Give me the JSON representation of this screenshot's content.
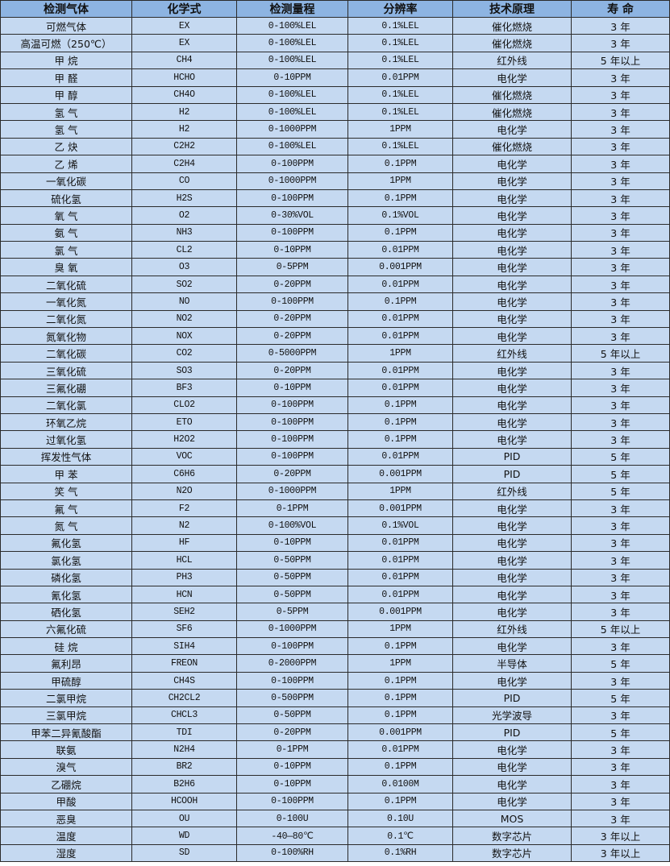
{
  "colors": {
    "header_bg": "#8DB4E2",
    "row_bg": "#C5D9F1",
    "border": "#2b2b2b"
  },
  "headers": [
    "检测气体",
    "化学式",
    "检测量程",
    "分辨率",
    "技术原理",
    "寿 命"
  ],
  "rows": [
    [
      "可燃气体",
      "EX",
      "0-100%LEL",
      "0.1%LEL",
      "催化燃烧",
      "3 年"
    ],
    [
      "高温可燃（250℃）",
      "EX",
      "0-100%LEL",
      "0.1%LEL",
      "催化燃烧",
      "3 年"
    ],
    [
      "甲 烷",
      "CH4",
      "0-100%LEL",
      "0.1%LEL",
      "红外线",
      "5 年以上"
    ],
    [
      "甲 醛",
      "HCHO",
      "0-10PPM",
      "0.01PPM",
      "电化学",
      "3 年"
    ],
    [
      "甲 醇",
      "CH4O",
      "0-100%LEL",
      "0.1%LEL",
      "催化燃烧",
      "3 年"
    ],
    [
      "氢 气",
      "H2",
      "0-100%LEL",
      "0.1%LEL",
      "催化燃烧",
      "3 年"
    ],
    [
      "氢 气",
      "H2",
      "0-1000PPM",
      "1PPM",
      "电化学",
      "3 年"
    ],
    [
      "乙 炔",
      "C2H2",
      "0-100%LEL",
      "0.1%LEL",
      "催化燃烧",
      "3 年"
    ],
    [
      "乙 烯",
      "C2H4",
      "0-100PPM",
      "0.1PPM",
      "电化学",
      "3 年"
    ],
    [
      "一氧化碳",
      "CO",
      "0-1000PPM",
      "1PPM",
      "电化学",
      "3 年"
    ],
    [
      "硫化氢",
      "H2S",
      "0-100PPM",
      "0.1PPM",
      "电化学",
      "3 年"
    ],
    [
      "氧 气",
      "O2",
      "0-30%VOL",
      "0.1%VOL",
      "电化学",
      "3 年"
    ],
    [
      "氨 气",
      "NH3",
      "0-100PPM",
      "0.1PPM",
      "电化学",
      "3 年"
    ],
    [
      "氯 气",
      "CL2",
      "0-10PPM",
      "0.01PPM",
      "电化学",
      "3 年"
    ],
    [
      "臭 氧",
      "O3",
      "0-5PPM",
      "0.001PPM",
      "电化学",
      "3 年"
    ],
    [
      "二氧化硫",
      "SO2",
      "0-20PPM",
      "0.01PPM",
      "电化学",
      "3 年"
    ],
    [
      "一氧化氮",
      "NO",
      "0-100PPM",
      "0.1PPM",
      "电化学",
      "3 年"
    ],
    [
      "二氧化氮",
      "NO2",
      "0-20PPM",
      "0.01PPM",
      "电化学",
      "3 年"
    ],
    [
      "氮氧化物",
      "NOX",
      "0-20PPM",
      "0.01PPM",
      "电化学",
      "3 年"
    ],
    [
      "二氧化碳",
      "CO2",
      "0-5000PPM",
      "1PPM",
      "红外线",
      "5 年以上"
    ],
    [
      "三氧化硫",
      "SO3",
      "0-20PPM",
      "0.01PPM",
      "电化学",
      "3 年"
    ],
    [
      "三氟化硼",
      "BF3",
      "0-10PPM",
      "0.01PPM",
      "电化学",
      "3 年"
    ],
    [
      "二氧化氯",
      "CLO2",
      "0-100PPM",
      "0.1PPM",
      "电化学",
      "3 年"
    ],
    [
      "环氧乙烷",
      "ETO",
      "0-100PPM",
      "0.1PPM",
      "电化学",
      "3 年"
    ],
    [
      "过氧化氢",
      "H2O2",
      "0-100PPM",
      "0.1PPM",
      "电化学",
      "3 年"
    ],
    [
      "挥发性气体",
      "VOC",
      "0-100PPM",
      "0.01PPM",
      "PID",
      "5 年"
    ],
    [
      "甲 苯",
      "C6H6",
      "0-20PPM",
      "0.001PPM",
      "PID",
      "5 年"
    ],
    [
      "笑 气",
      "N2O",
      "0-1000PPM",
      "1PPM",
      "红外线",
      "5 年"
    ],
    [
      "氟 气",
      "F2",
      "0-1PPM",
      "0.001PPM",
      "电化学",
      "3 年"
    ],
    [
      "氮 气",
      "N2",
      "0-100%VOL",
      "0.1%VOL",
      "电化学",
      "3 年"
    ],
    [
      "氟化氢",
      "HF",
      "0-10PPM",
      "0.01PPM",
      "电化学",
      "3 年"
    ],
    [
      "氯化氢",
      "HCL",
      "0-50PPM",
      "0.01PPM",
      "电化学",
      "3 年"
    ],
    [
      "磷化氢",
      "PH3",
      "0-50PPM",
      "0.01PPM",
      "电化学",
      "3 年"
    ],
    [
      "氰化氢",
      "HCN",
      "0-50PPM",
      "0.01PPM",
      "电化学",
      "3 年"
    ],
    [
      "硒化氢",
      "SEH2",
      "0-5PPM",
      "0.001PPM",
      "电化学",
      "3 年"
    ],
    [
      "六氟化硫",
      "SF6",
      "0-1000PPM",
      "1PPM",
      "红外线",
      "5 年以上"
    ],
    [
      "硅 烷",
      "SIH4",
      "0-100PPM",
      "0.1PPM",
      "电化学",
      "3 年"
    ],
    [
      "氟利昂",
      "FREON",
      "0-2000PPM",
      "1PPM",
      "半导体",
      "5 年"
    ],
    [
      "甲硫醇",
      "CH4S",
      "0-100PPM",
      "0.1PPM",
      "电化学",
      "3 年"
    ],
    [
      "二氯甲烷",
      "CH2CL2",
      "0-500PPM",
      "0.1PPM",
      "PID",
      "5 年"
    ],
    [
      "三氯甲烷",
      "CHCL3",
      "0-50PPM",
      "0.1PPM",
      "光学波导",
      "3 年"
    ],
    [
      "甲苯二异氰酸酯",
      "TDI",
      "0-20PPM",
      "0.001PPM",
      "PID",
      "5 年"
    ],
    [
      "联氨",
      "N2H4",
      "0-1PPM",
      "0.01PPM",
      "电化学",
      "3 年"
    ],
    [
      "溴气",
      "BR2",
      "0-10PPM",
      "0.1PPM",
      "电化学",
      "3 年"
    ],
    [
      "乙硼烷",
      "B2H6",
      "0-10PPM",
      "0.0100M",
      "电化学",
      "3 年"
    ],
    [
      "甲酸",
      "HCOOH",
      "0-100PPM",
      "0.1PPM",
      "电化学",
      "3 年"
    ],
    [
      "恶臭",
      "OU",
      "0-100U",
      "0.10U",
      "MOS",
      "3 年"
    ],
    [
      "温度",
      "WD",
      "-40—80℃",
      "0.1℃",
      "数字芯片",
      "3 年以上"
    ],
    [
      "湿度",
      "SD",
      "0-100%RH",
      "0.1%RH",
      "数字芯片",
      "3 年以上"
    ]
  ]
}
